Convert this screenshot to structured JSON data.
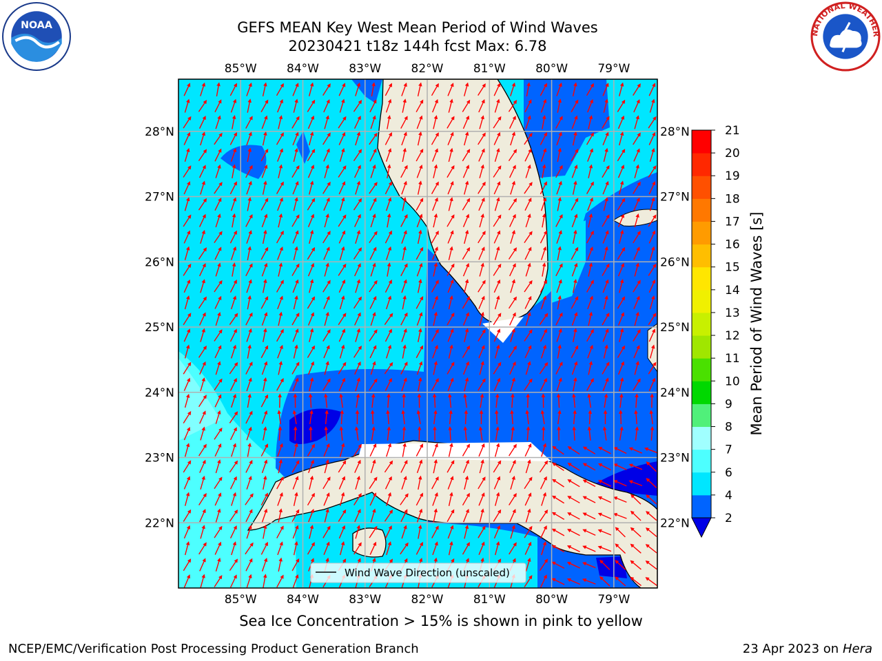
{
  "header": {
    "title_line1": "GEFS MEAN Key West Mean Period of Wind Waves",
    "title_line2": "20230421 t18z 144h fcst   Max: 6.78"
  },
  "logos": {
    "left": {
      "icon": "noaa-logo",
      "text": "NOAA"
    },
    "right": {
      "icon": "nws-logo",
      "ring_text": "NATIONAL WEATHER SERVICE"
    }
  },
  "map": {
    "lon_labels": [
      "85°W",
      "84°W",
      "83°W",
      "82°W",
      "81°W",
      "80°W",
      "79°W"
    ],
    "lat_labels": [
      "28°N",
      "27°N",
      "26°N",
      "25°N",
      "24°N",
      "23°N",
      "22°N"
    ],
    "lon_range": [
      -86.0,
      -78.3
    ],
    "lat_range": [
      21.0,
      28.8
    ],
    "legend_label": "Wind Wave Direction (unscaled)",
    "land_color": "#efecdc",
    "arrow_color": "#ff0000"
  },
  "colorbar": {
    "label": "Mean Period of Wind Waves [s]",
    "ticks": [
      "21",
      "20",
      "19",
      "18",
      "17",
      "16",
      "15",
      "14",
      "13",
      "12",
      "11",
      "10",
      "9",
      "8",
      "7",
      "6",
      "4",
      "2"
    ],
    "levels": [
      2,
      4,
      6,
      7,
      8,
      9,
      10,
      11,
      12,
      13,
      14,
      15,
      16,
      17,
      18,
      19,
      20,
      21
    ],
    "colors": [
      "#0064ff",
      "#00e6ff",
      "#4dffff",
      "#a0ffff",
      "#50f07a",
      "#00d800",
      "#4ae000",
      "#a0e600",
      "#c8f000",
      "#f0f000",
      "#ffe600",
      "#ffbe00",
      "#ff9b00",
      "#ff7800",
      "#ff5000",
      "#ff2800",
      "#ff0000"
    ],
    "under_color": "#0000e6"
  },
  "notes": {
    "ice_note": "Sea Ice Concentration > 15% is shown in pink to yellow"
  },
  "footer": {
    "left": "NCEP/EMC/Verification Post Processing Product Generation Branch",
    "right_date": "23 Apr 2023 on ",
    "right_host": "Hera"
  }
}
